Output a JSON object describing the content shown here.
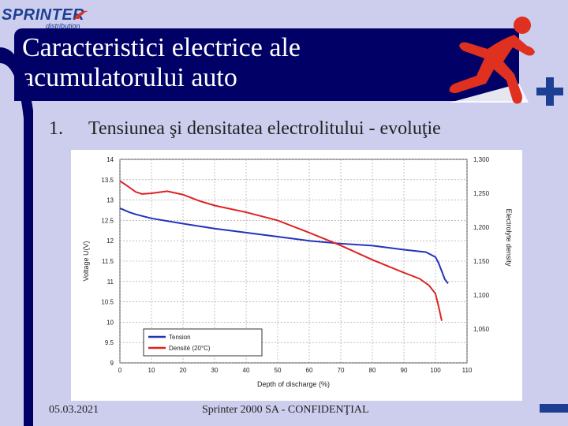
{
  "logo": {
    "name": "SPRINTER",
    "sub": "distribution"
  },
  "title": {
    "line1": "Caracteristici electrice ale",
    "line2": "acumulatorului auto"
  },
  "bullet": {
    "number": "1.",
    "text": "Tensiunea şi densitatea electrolitului - evoluţie"
  },
  "footer": {
    "date": "05.03.2021",
    "center": "Sprinter 2000 SA - CONFIDENŢIAL"
  },
  "colors": {
    "banner": "#000066",
    "background": "#cdcdee",
    "tension": "#2233bb",
    "density": "#dd2222",
    "accent": "#1c3f94"
  },
  "chart_data": {
    "type": "line",
    "xlabel": "Depth of discharge (%)",
    "ylabel": "Voltage U(V)",
    "y2label": "Electrolyte density",
    "xlim": [
      0,
      110
    ],
    "ylim": [
      9,
      14
    ],
    "y2lim": [
      1.0,
      1.3
    ],
    "x_ticks": [
      "0",
      "10",
      "20",
      "30",
      "40",
      "50",
      "60",
      "70",
      "80",
      "90",
      "100",
      "110"
    ],
    "y_ticks": [
      "9",
      "9.5",
      "10",
      "10.5",
      "11",
      "11.5",
      "12",
      "12.5",
      "13",
      "13.5",
      "14"
    ],
    "y2_ticks": [
      "1,050",
      "1,100",
      "1,150",
      "1,200",
      "1,250",
      "1,300"
    ],
    "grid": true,
    "legend": "bottom-left",
    "series": [
      {
        "name": "Tension",
        "axis": "left",
        "x": [
          0,
          3,
          5,
          10,
          20,
          30,
          40,
          50,
          60,
          70,
          80,
          90,
          97,
          100,
          101,
          102,
          103,
          104
        ],
        "y": [
          12.8,
          12.7,
          12.65,
          12.55,
          12.42,
          12.3,
          12.2,
          12.1,
          12.0,
          11.93,
          11.88,
          11.78,
          11.72,
          11.6,
          11.45,
          11.25,
          11.05,
          10.95
        ]
      },
      {
        "name": "Densité (20°C)",
        "axis": "right",
        "x": [
          0,
          2,
          5,
          7,
          10,
          15,
          20,
          25,
          30,
          40,
          50,
          60,
          70,
          80,
          90,
          95,
          98,
          100,
          101,
          102
        ],
        "y": [
          1.268,
          1.262,
          1.252,
          1.249,
          1.25,
          1.253,
          1.248,
          1.239,
          1.232,
          1.222,
          1.21,
          1.192,
          1.173,
          1.152,
          1.133,
          1.124,
          1.114,
          1.102,
          1.083,
          1.062
        ]
      }
    ]
  }
}
